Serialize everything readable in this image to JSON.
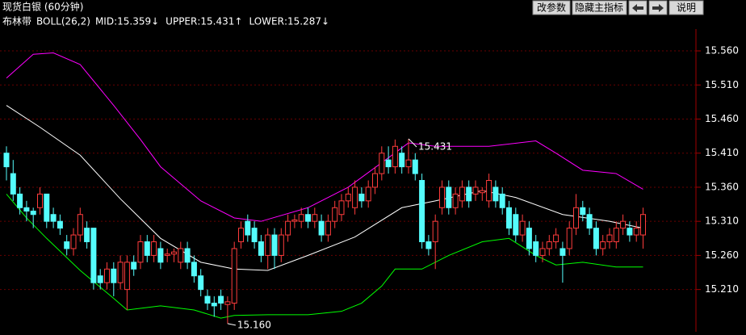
{
  "header": {
    "title": "现货白银 (60分钟)"
  },
  "toolbar": [
    "改参数",
    "隐藏主指标",
    "说明"
  ],
  "chart_data": {
    "type": "candlestick",
    "indicator_name": "布林带",
    "indicator": "BOLL(26,2)",
    "up_color": "#ff3c3c",
    "down_color": "#54fcfc",
    "open": [
      15.41,
      15.38,
      15.35,
      15.33,
      15.325,
      15.33,
      15.35,
      15.32,
      15.31,
      15.28,
      15.27,
      15.29,
      15.3,
      15.3,
      15.23,
      15.22,
      15.24,
      15.22,
      15.21,
      15.25,
      15.25,
      15.28,
      15.26,
      15.27,
      15.26,
      15.262,
      15.25,
      15.27,
      15.25,
      15.23,
      15.2,
      15.19,
      15.2,
      15.188,
      15.19,
      15.28,
      15.31,
      15.3,
      15.28,
      15.26,
      15.29,
      15.26,
      15.29,
      15.31,
      15.31,
      15.32,
      15.31,
      15.31,
      15.29,
      15.31,
      15.32,
      15.34,
      15.33,
      15.35,
      15.34,
      15.36,
      15.38,
      15.4,
      15.39,
      15.41,
      15.39,
      15.4,
      15.37,
      15.28,
      15.28,
      15.33,
      15.36,
      15.33,
      15.34,
      15.36,
      15.35,
      15.352,
      15.34,
      15.36,
      15.35,
      15.33,
      15.32,
      15.29,
      15.3,
      15.28,
      15.26,
      15.27,
      15.28,
      15.27,
      15.27,
      15.3,
      15.33,
      15.32,
      15.3,
      15.27,
      15.28,
      15.28,
      15.3,
      15.3,
      15.29,
      15.29
    ],
    "high": [
      15.42,
      15.4,
      15.36,
      15.34,
      15.33,
      15.36,
      15.35,
      15.33,
      15.32,
      15.29,
      15.3,
      15.33,
      15.31,
      15.3,
      15.24,
      15.25,
      15.25,
      15.26,
      15.26,
      15.26,
      15.29,
      15.29,
      15.29,
      15.28,
      15.27,
      15.27,
      15.28,
      15.28,
      15.26,
      15.24,
      15.21,
      15.2,
      15.21,
      15.2,
      15.28,
      15.31,
      15.32,
      15.31,
      15.29,
      15.3,
      15.3,
      15.3,
      15.32,
      15.32,
      15.33,
      15.33,
      15.33,
      15.32,
      15.32,
      15.34,
      15.35,
      15.36,
      15.37,
      15.36,
      15.37,
      15.39,
      15.42,
      15.42,
      15.43,
      15.42,
      15.431,
      15.41,
      15.38,
      15.29,
      15.32,
      15.37,
      15.37,
      15.36,
      15.37,
      15.37,
      15.37,
      15.36,
      15.38,
      15.37,
      15.36,
      15.34,
      15.33,
      15.32,
      15.31,
      15.29,
      15.28,
      15.29,
      15.3,
      15.28,
      15.31,
      15.35,
      15.34,
      15.33,
      15.31,
      15.29,
      15.3,
      15.31,
      15.32,
      15.31,
      15.31,
      15.33
    ],
    "low": [
      15.37,
      15.34,
      15.32,
      15.31,
      15.3,
      15.32,
      15.3,
      15.3,
      15.29,
      15.26,
      15.26,
      15.28,
      15.27,
      15.21,
      15.21,
      15.21,
      15.2,
      15.21,
      15.18,
      15.23,
      15.24,
      15.25,
      15.25,
      15.24,
      15.25,
      15.25,
      15.24,
      15.24,
      15.22,
      15.2,
      15.18,
      15.17,
      15.18,
      15.16,
      15.18,
      15.27,
      15.28,
      15.27,
      15.25,
      15.24,
      15.24,
      15.25,
      15.28,
      15.3,
      15.3,
      15.3,
      15.3,
      15.28,
      15.28,
      15.3,
      15.31,
      15.33,
      15.32,
      15.33,
      15.33,
      15.35,
      15.37,
      15.38,
      15.38,
      15.38,
      15.38,
      15.37,
      15.27,
      15.26,
      15.24,
      15.32,
      15.32,
      15.32,
      15.33,
      15.33,
      15.34,
      15.34,
      15.33,
      15.33,
      15.32,
      15.29,
      15.28,
      15.28,
      15.26,
      15.25,
      15.25,
      15.26,
      15.27,
      15.22,
      15.26,
      15.29,
      15.31,
      15.29,
      15.26,
      15.26,
      15.27,
      15.27,
      15.29,
      15.28,
      15.28,
      15.27
    ],
    "close": [
      15.39,
      15.35,
      15.33,
      15.325,
      15.32,
      15.35,
      15.31,
      15.31,
      15.3,
      15.27,
      15.29,
      15.32,
      15.28,
      15.22,
      15.22,
      15.24,
      15.22,
      15.25,
      15.25,
      15.24,
      15.28,
      15.26,
      15.28,
      15.25,
      15.262,
      15.265,
      15.27,
      15.25,
      15.23,
      15.21,
      15.19,
      15.186,
      15.19,
      15.192,
      15.27,
      15.3,
      15.29,
      15.28,
      15.26,
      15.29,
      15.26,
      15.29,
      15.31,
      15.312,
      15.32,
      15.31,
      15.32,
      15.29,
      15.31,
      15.33,
      15.34,
      15.35,
      15.36,
      15.34,
      15.36,
      15.38,
      15.41,
      15.39,
      15.42,
      15.39,
      15.4,
      15.38,
      15.28,
      15.27,
      15.31,
      15.36,
      15.33,
      15.35,
      15.36,
      15.34,
      15.36,
      15.355,
      15.37,
      15.34,
      15.33,
      15.3,
      15.29,
      15.31,
      15.27,
      15.26,
      15.27,
      15.28,
      15.29,
      15.26,
      15.3,
      15.33,
      15.32,
      15.3,
      15.27,
      15.28,
      15.29,
      15.3,
      15.31,
      15.29,
      15.3,
      15.32
    ],
    "series": [
      {
        "name": "MID",
        "value_label": ":15.359↓",
        "color": "#ffffff",
        "x": [
          0,
          5,
          11,
          17,
          23,
          29,
          34,
          39,
          45,
          52,
          59,
          64,
          71,
          76,
          83,
          90,
          95
        ],
        "values": [
          15.48,
          15.448,
          15.407,
          15.343,
          15.285,
          15.25,
          15.24,
          15.238,
          15.26,
          15.287,
          15.33,
          15.34,
          15.355,
          15.345,
          15.32,
          15.31,
          15.3
        ]
      },
      {
        "name": "UPPER",
        "value_label": ":15.431↑",
        "color": "#ff00ff",
        "x": [
          0,
          4,
          7,
          11,
          16,
          20,
          23,
          29,
          34,
          38,
          45,
          51,
          56,
          60,
          64,
          72,
          79,
          82,
          86,
          91,
          95
        ],
        "values": [
          15.52,
          15.555,
          15.557,
          15.54,
          15.48,
          15.43,
          15.39,
          15.34,
          15.315,
          15.31,
          15.33,
          15.36,
          15.396,
          15.425,
          15.42,
          15.42,
          15.428,
          15.41,
          15.385,
          15.38,
          15.357
        ]
      },
      {
        "name": "LOWER",
        "value_label": ":15.287↓",
        "color": "#00ff00",
        "x": [
          0,
          3,
          6,
          11,
          16,
          18,
          23,
          28,
          32,
          34,
          39,
          45,
          50,
          53,
          56,
          58,
          62,
          66,
          71,
          75,
          79,
          82,
          86,
          91,
          95
        ],
        "values": [
          15.35,
          15.315,
          15.285,
          15.238,
          15.197,
          15.18,
          15.186,
          15.18,
          15.168,
          15.172,
          15.173,
          15.173,
          15.178,
          15.19,
          15.215,
          15.24,
          15.24,
          15.26,
          15.28,
          15.285,
          15.26,
          15.246,
          15.25,
          15.243,
          15.243
        ]
      }
    ],
    "annotations": [
      {
        "label": "15.431",
        "x": 60,
        "value": 15.431
      },
      {
        "label": "15.160",
        "x": 33,
        "value": 15.16
      }
    ],
    "ylim": [
      15.148,
      15.592
    ],
    "yticks": [
      {
        "value": 15.56,
        "label": "15.560"
      },
      {
        "value": 15.51,
        "label": "15.510"
      },
      {
        "value": 15.46,
        "label": "15.460"
      },
      {
        "value": 15.41,
        "label": "15.410"
      },
      {
        "value": 15.36,
        "label": "15.360"
      },
      {
        "value": 15.31,
        "label": "15.310"
      },
      {
        "value": 15.26,
        "label": "15.260"
      },
      {
        "value": 15.21,
        "label": "15.210"
      }
    ],
    "grid": true
  }
}
